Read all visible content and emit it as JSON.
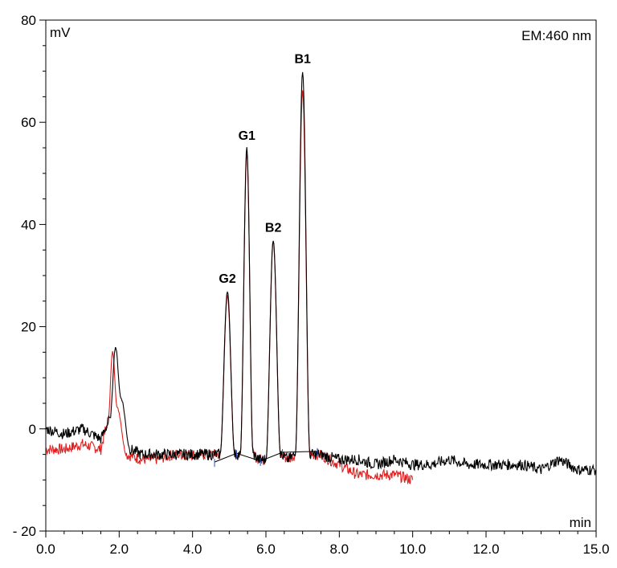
{
  "chart_data": {
    "type": "line",
    "title": "",
    "xlabel": "min",
    "ylabel": "mV",
    "annotation": "EM:460 nm",
    "xlim": [
      0,
      15
    ],
    "ylim": [
      -20,
      80
    ],
    "grid": false,
    "x_ticks": [
      0,
      2,
      4,
      6,
      8,
      10,
      12,
      15
    ],
    "x_tick_labels": [
      "0.0",
      "2.0",
      "4.0",
      "6.0",
      "8.0",
      "10.0",
      "12.0",
      "15.0"
    ],
    "y_ticks": [
      -20,
      0,
      20,
      40,
      60,
      80
    ],
    "y_tick_labels": [
      "- 20",
      "0",
      "20",
      "40",
      "60",
      "80"
    ],
    "peaks": [
      {
        "label": "G2",
        "x": 4.95,
        "y": 27
      },
      {
        "label": "G1",
        "x": 5.48,
        "y": 55
      },
      {
        "label": "B2",
        "x": 6.2,
        "y": 37
      },
      {
        "label": "B1",
        "x": 7.0,
        "y": 70
      }
    ],
    "series": [
      {
        "color": "#000000",
        "x": [
          0.0,
          0.5,
          1.0,
          1.5,
          1.75,
          1.9,
          2.05,
          2.3,
          2.6,
          3.0,
          3.5,
          4.0,
          4.5,
          4.75,
          4.95,
          5.15,
          5.3,
          5.48,
          5.65,
          5.8,
          6.0,
          6.2,
          6.4,
          6.6,
          6.8,
          7.0,
          7.2,
          7.45,
          8.0,
          8.5,
          9.0,
          9.5,
          10.0,
          10.5,
          11.0,
          11.5,
          12.0,
          12.5,
          13.0,
          13.5,
          14.0,
          14.5,
          15.0
        ],
        "y": [
          0,
          -1,
          0,
          -2,
          2,
          16,
          6,
          -4,
          -5,
          -5,
          -5,
          -5,
          -5,
          -5,
          27,
          -5,
          -5,
          55,
          -5,
          -6,
          -6,
          37,
          -5,
          -6,
          -5,
          70,
          -5,
          -5,
          -6,
          -6,
          -7,
          -6,
          -7,
          -7,
          -6,
          -7,
          -7,
          -7,
          -7,
          -8,
          -6,
          -8,
          -8
        ]
      },
      {
        "color": "#e02020",
        "x": [
          0.0,
          0.5,
          1.0,
          1.5,
          1.7,
          1.82,
          1.95,
          2.2,
          2.6,
          3.0,
          3.5,
          4.0,
          4.5,
          4.75,
          4.95,
          5.15,
          5.3,
          5.48,
          5.65,
          5.8,
          6.0,
          6.2,
          6.4,
          6.6,
          6.8,
          7.0,
          7.2,
          7.45,
          8.0,
          8.5,
          9.0,
          9.5,
          10.0
        ],
        "y": [
          -4,
          -4,
          -3,
          -4,
          2,
          15,
          4,
          -5,
          -6,
          -6,
          -5,
          -5,
          -5,
          -5,
          26,
          -5,
          -5,
          54,
          -5,
          -6,
          -6,
          37,
          -5,
          -6,
          -5,
          66,
          -5,
          -5,
          -7,
          -9,
          -9,
          -9,
          -10
        ]
      }
    ],
    "baseline": {
      "color": "#000000",
      "x": [
        4.6,
        5.2,
        5.85,
        6.45,
        7.4
      ],
      "y": [
        -6.5,
        -4.8,
        -6.3,
        -4.6,
        -4.4
      ]
    }
  }
}
